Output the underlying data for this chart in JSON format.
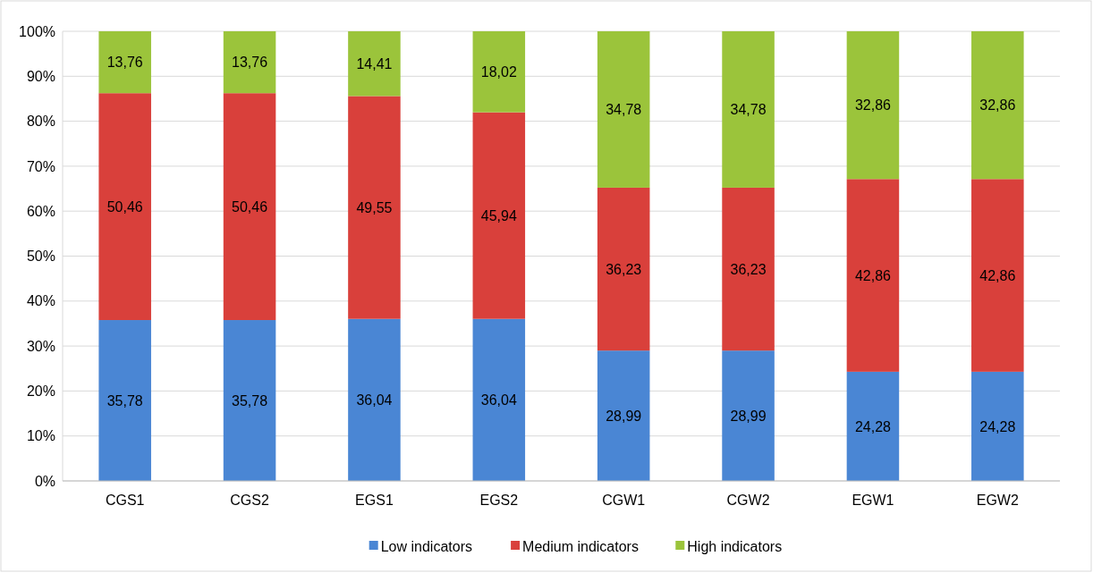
{
  "chart_data": {
    "type": "bar",
    "stacked": true,
    "categories": [
      "CGS1",
      "CGS2",
      "EGS1",
      "EGS2",
      "CGW1",
      "CGW2",
      "EGW1",
      "EGW2"
    ],
    "series": [
      {
        "name": "Low indicators",
        "color": "#4a86d4",
        "values": [
          35.78,
          35.78,
          36.04,
          36.04,
          28.99,
          28.99,
          24.28,
          24.28
        ],
        "value_labels": [
          "35,78",
          "35,78",
          "36,04",
          "36,04",
          "28,99",
          "28,99",
          "24,28",
          "24,28"
        ]
      },
      {
        "name": "Medium indicators",
        "color": "#d9403b",
        "values": [
          50.46,
          50.46,
          49.55,
          45.94,
          36.23,
          36.23,
          42.86,
          42.86
        ],
        "value_labels": [
          "50,46",
          "50,46",
          "49,55",
          "45,94",
          "36,23",
          "36,23",
          "42,86",
          "42,86"
        ]
      },
      {
        "name": "High indicators",
        "color": "#9bc43b",
        "values": [
          13.76,
          13.76,
          14.41,
          18.02,
          34.78,
          34.78,
          32.86,
          32.86
        ],
        "value_labels": [
          "13,76",
          "13,76",
          "14,41",
          "18,02",
          "34,78",
          "34,78",
          "32,86",
          "32,86"
        ]
      }
    ],
    "ylim": [
      0,
      100
    ],
    "yticks": [
      {
        "value": 0,
        "label": "0%"
      },
      {
        "value": 10,
        "label": "10%"
      },
      {
        "value": 20,
        "label": "20%"
      },
      {
        "value": 30,
        "label": "30%"
      },
      {
        "value": 40,
        "label": "40%"
      },
      {
        "value": 50,
        "label": "50%"
      },
      {
        "value": 60,
        "label": "60%"
      },
      {
        "value": 70,
        "label": "70%"
      },
      {
        "value": 80,
        "label": "80%"
      },
      {
        "value": 90,
        "label": "90%"
      },
      {
        "value": 100,
        "label": "100%"
      }
    ],
    "grid": "y",
    "legend": "bottom"
  }
}
